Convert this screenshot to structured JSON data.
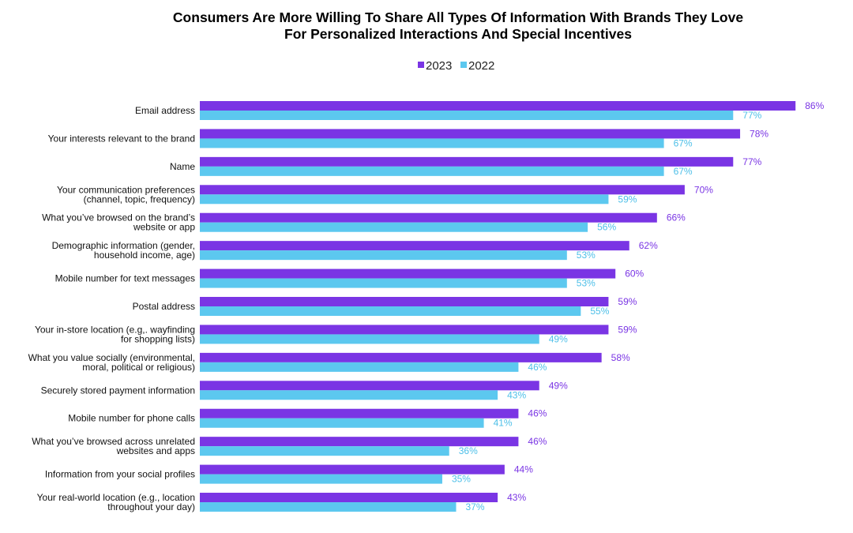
{
  "chart_data": {
    "type": "bar",
    "orientation": "horizontal",
    "title": [
      "Consumers Are More Willing To Share All Types Of Information With Brands They Love",
      "For Personalized Interactions And Special Incentives"
    ],
    "legend_position": "top",
    "grid": false,
    "value_suffix": "%",
    "xlim": [
      0,
      100
    ],
    "categories": [
      [
        "Email address"
      ],
      [
        "Your interests relevant to the brand"
      ],
      [
        "Name"
      ],
      [
        "Your communication preferences",
        "(channel, topic, frequency)"
      ],
      [
        "What you’ve browsed on the brand’s",
        "website or app"
      ],
      [
        "Demographic information (gender,",
        "household income, age)"
      ],
      [
        "Mobile number for text messages"
      ],
      [
        "Postal address"
      ],
      [
        "Your in-store location (e.g,. wayfinding",
        "for shopping lists)"
      ],
      [
        "What you value socially (environmental,",
        "moral, political or religious)"
      ],
      [
        "Securely stored payment information"
      ],
      [
        "Mobile number for phone calls"
      ],
      [
        "What you’ve browsed across unrelated",
        "websites and apps"
      ],
      [
        "Information from your social profiles"
      ],
      [
        "Your real-world location (e.g., location",
        "throughout your day)"
      ]
    ],
    "series": [
      {
        "name": "2023",
        "color": "#7a35e4",
        "label_color": "#7a35e4",
        "values": [
          86,
          78,
          77,
          70,
          66,
          62,
          60,
          59,
          59,
          58,
          49,
          46,
          46,
          44,
          43
        ]
      },
      {
        "name": "2022",
        "color": "#5cc8ef",
        "label_color": "#4dbfe8",
        "values": [
          77,
          67,
          67,
          59,
          56,
          53,
          53,
          55,
          49,
          46,
          43,
          41,
          36,
          35,
          37
        ]
      }
    ]
  }
}
